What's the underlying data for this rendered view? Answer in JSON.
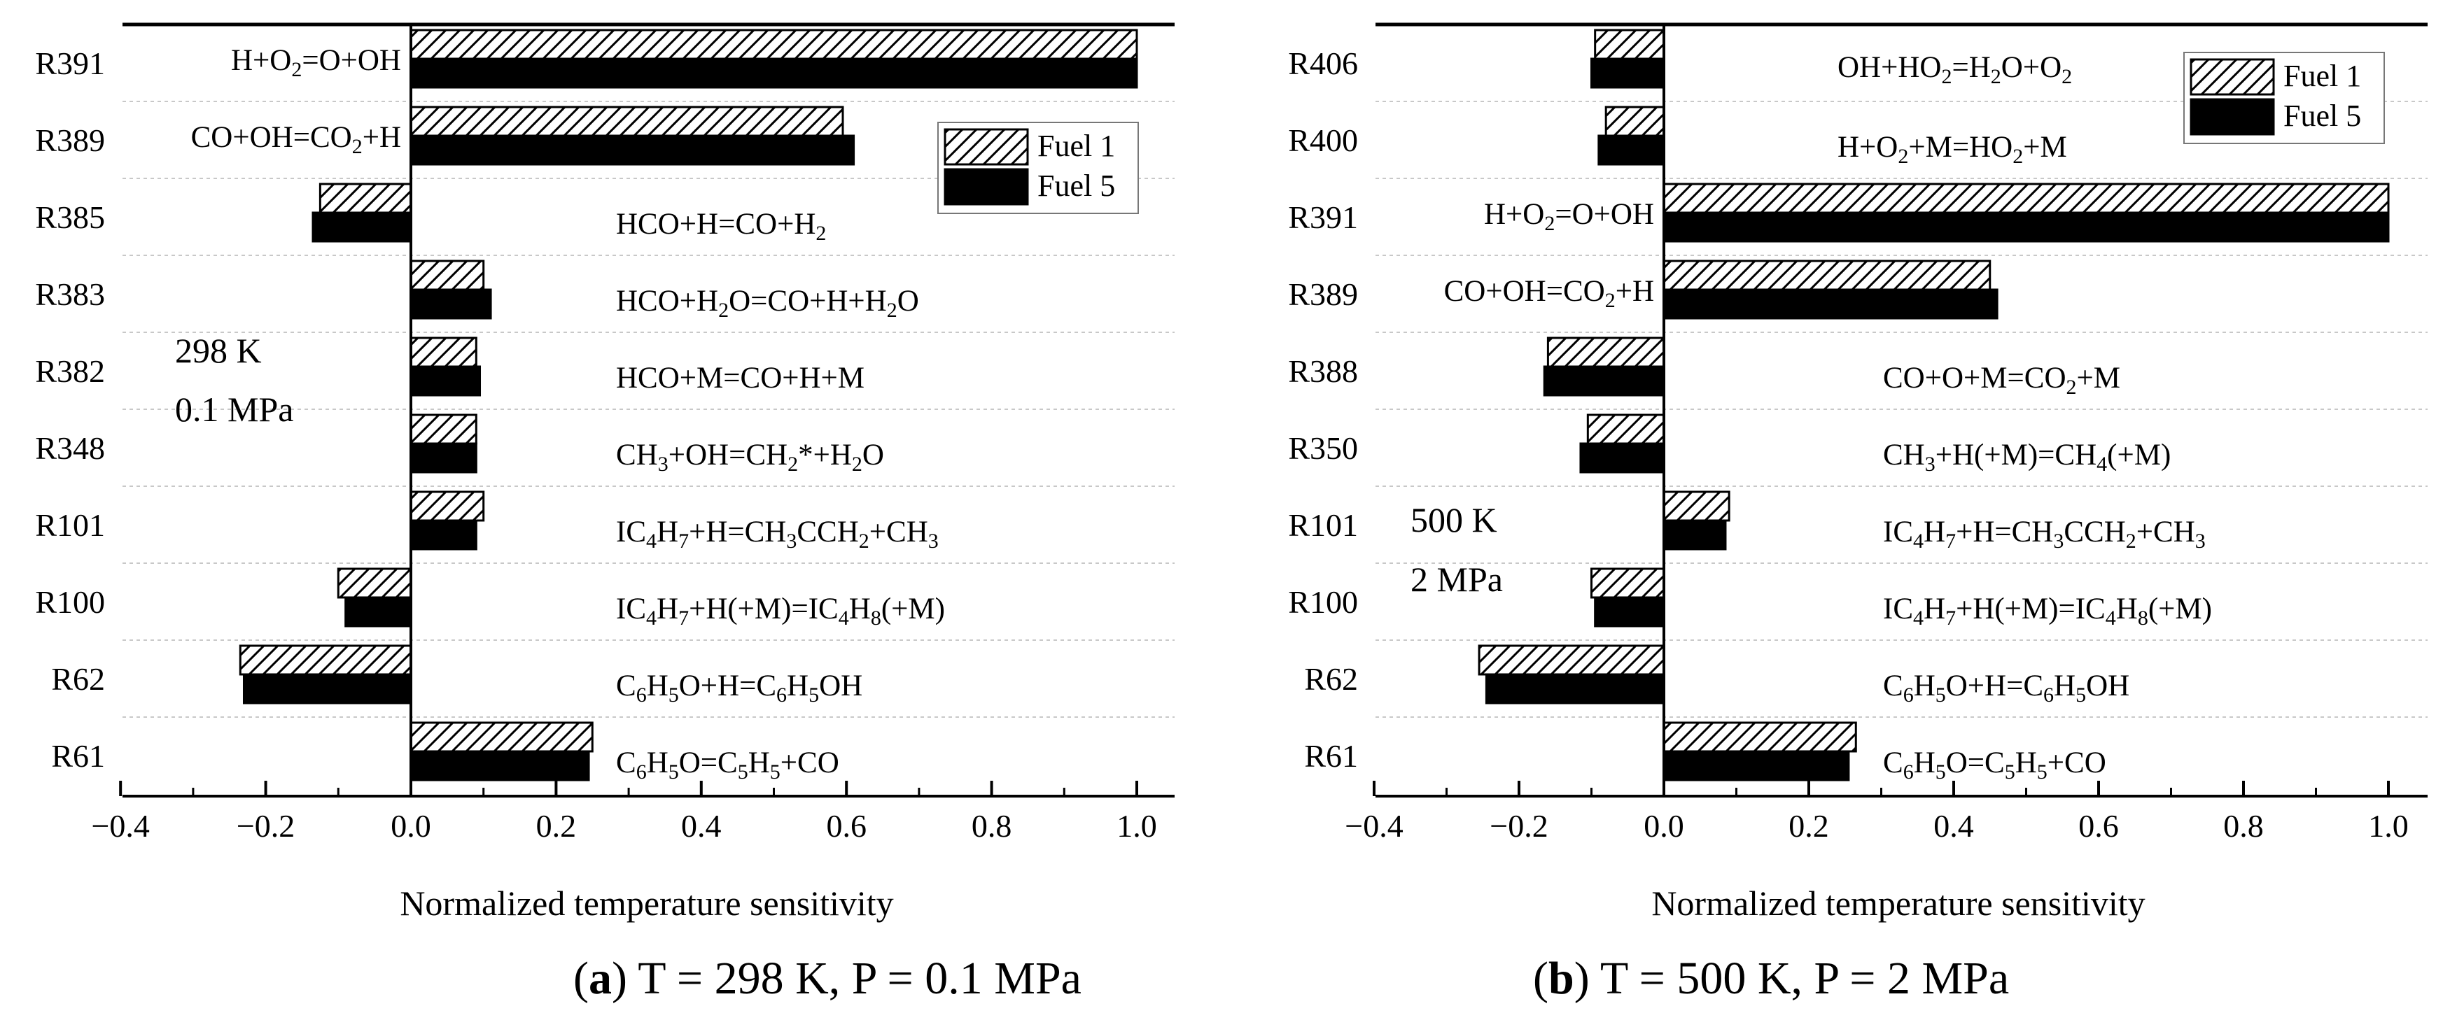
{
  "colors": {
    "fuel1_fill": "#ffffff",
    "fuel5_fill": "#000000",
    "axis": "#000000",
    "grid": "#c8c8c8"
  },
  "chart_data": [
    {
      "type": "bar",
      "orientation": "horizontal",
      "xlabel": "Normalized temperature sensitivity",
      "xlim": [
        -0.4,
        1.05
      ],
      "xticks": [
        "-0.4",
        "-0.2",
        "0.0",
        "0.2",
        "0.4",
        "0.6",
        "0.8",
        "1.0"
      ],
      "condition_lines": [
        "298 K",
        "0.1 MPa"
      ],
      "caption": {
        "label": "a",
        "text": " T = 298 K, P = 0.1 MPa"
      },
      "legend": [
        "Fuel 1",
        "Fuel 5"
      ],
      "legend_position": "top-right",
      "reaction_label_placement": [
        "left-of-zero",
        "left-of-zero",
        "right",
        "right",
        "right",
        "right",
        "right",
        "right",
        "right",
        "right"
      ],
      "categories": [
        {
          "id": "R391",
          "reaction": [
            [
              "H+O"
            ],
            [
              "2",
              "sub"
            ],
            [
              "=O+OH"
            ]
          ]
        },
        {
          "id": "R389",
          "reaction": [
            [
              "CO+OH=CO"
            ],
            [
              "2",
              "sub"
            ],
            [
              "+H"
            ]
          ]
        },
        {
          "id": "R385",
          "reaction": [
            [
              "HCO+H=CO+H"
            ],
            [
              "2",
              "sub"
            ]
          ]
        },
        {
          "id": "R383",
          "reaction": [
            [
              "HCO+H"
            ],
            [
              "2",
              "sub"
            ],
            [
              "O=CO+H+H"
            ],
            [
              "2",
              "sub"
            ],
            [
              "O"
            ]
          ]
        },
        {
          "id": "R382",
          "reaction": [
            [
              "HCO+M=CO+H+M"
            ]
          ]
        },
        {
          "id": "R348",
          "reaction": [
            [
              "CH"
            ],
            [
              "3",
              "sub"
            ],
            [
              "+OH=CH"
            ],
            [
              "2",
              "sub"
            ],
            [
              "*+H"
            ],
            [
              "2",
              "sub"
            ],
            [
              "O"
            ]
          ]
        },
        {
          "id": "R101",
          "reaction": [
            [
              "IC"
            ],
            [
              "4",
              "sub"
            ],
            [
              "H"
            ],
            [
              "7",
              "sub"
            ],
            [
              "+H=CH"
            ],
            [
              "3",
              "sub"
            ],
            [
              "CCH"
            ],
            [
              "2",
              "sub"
            ],
            [
              "+CH"
            ],
            [
              "3",
              "sub"
            ]
          ]
        },
        {
          "id": "R100",
          "reaction": [
            [
              "IC"
            ],
            [
              "4",
              "sub"
            ],
            [
              "H"
            ],
            [
              "7",
              "sub"
            ],
            [
              "+H(+M)=IC"
            ],
            [
              "4",
              "sub"
            ],
            [
              "H"
            ],
            [
              "8",
              "sub"
            ],
            [
              "(+M)"
            ]
          ]
        },
        {
          "id": "R62",
          "reaction": [
            [
              "C"
            ],
            [
              "6",
              "sub"
            ],
            [
              "H"
            ],
            [
              "5",
              "sub"
            ],
            [
              "O+H=C"
            ],
            [
              "6",
              "sub"
            ],
            [
              "H"
            ],
            [
              "5",
              "sub"
            ],
            [
              "OH"
            ]
          ]
        },
        {
          "id": "R61",
          "reaction": [
            [
              "C"
            ],
            [
              "6",
              "sub"
            ],
            [
              "H"
            ],
            [
              "5",
              "sub"
            ],
            [
              "O=C"
            ],
            [
              "5",
              "sub"
            ],
            [
              "H"
            ],
            [
              "5",
              "sub"
            ],
            [
              "+CO"
            ]
          ]
        }
      ],
      "series": [
        {
          "name": "Fuel 1",
          "values": [
            1.0,
            0.595,
            -0.125,
            0.1,
            0.09,
            0.09,
            0.1,
            -0.1,
            -0.235,
            0.25
          ]
        },
        {
          "name": "Fuel 5",
          "values": [
            1.0,
            0.61,
            -0.135,
            0.11,
            0.095,
            0.09,
            0.09,
            -0.09,
            -0.23,
            0.245
          ]
        }
      ]
    },
    {
      "type": "bar",
      "orientation": "horizontal",
      "xlabel": "Normalized temperature sensitivity",
      "xlim": [
        -0.4,
        1.05
      ],
      "xticks": [
        "-0.4",
        "-0.2",
        "0.0",
        "0.2",
        "0.4",
        "0.6",
        "0.8",
        "1.0"
      ],
      "condition_lines": [
        "500 K",
        "2 MPa"
      ],
      "caption": {
        "label": "b",
        "text": " T = 500 K, P = 2 MPa"
      },
      "legend": [
        "Fuel 1",
        "Fuel 5"
      ],
      "legend_position": "top-right",
      "reaction_label_placement": [
        "right",
        "right",
        "left-of-zero",
        "left-of-zero",
        "right",
        "right",
        "right",
        "right",
        "right",
        "right"
      ],
      "categories": [
        {
          "id": "R406",
          "reaction": [
            [
              "OH+HO"
            ],
            [
              "2",
              "sub"
            ],
            [
              "=H"
            ],
            [
              "2",
              "sub"
            ],
            [
              "O+O"
            ],
            [
              "2",
              "sub"
            ]
          ]
        },
        {
          "id": "R400",
          "reaction": [
            [
              "H+O"
            ],
            [
              "2",
              "sub"
            ],
            [
              "+M=HO"
            ],
            [
              "2",
              "sub"
            ],
            [
              "+M"
            ]
          ]
        },
        {
          "id": "R391",
          "reaction": [
            [
              "H+O"
            ],
            [
              "2",
              "sub"
            ],
            [
              "=O+OH"
            ]
          ]
        },
        {
          "id": "R389",
          "reaction": [
            [
              "CO+OH=CO"
            ],
            [
              "2",
              "sub"
            ],
            [
              "+H"
            ]
          ]
        },
        {
          "id": "R388",
          "reaction": [
            [
              "CO+O+M=CO"
            ],
            [
              "2",
              "sub"
            ],
            [
              "+M"
            ]
          ]
        },
        {
          "id": "R350",
          "reaction": [
            [
              "CH"
            ],
            [
              "3",
              "sub"
            ],
            [
              "+H(+M)=CH"
            ],
            [
              "4",
              "sub"
            ],
            [
              "(+M)"
            ]
          ]
        },
        {
          "id": "R101",
          "reaction": [
            [
              "IC"
            ],
            [
              "4",
              "sub"
            ],
            [
              "H"
            ],
            [
              "7",
              "sub"
            ],
            [
              "+H=CH"
            ],
            [
              "3",
              "sub"
            ],
            [
              "CCH"
            ],
            [
              "2",
              "sub"
            ],
            [
              "+CH"
            ],
            [
              "3",
              "sub"
            ]
          ]
        },
        {
          "id": "R100",
          "reaction": [
            [
              "IC"
            ],
            [
              "4",
              "sub"
            ],
            [
              "H"
            ],
            [
              "7",
              "sub"
            ],
            [
              "+H(+M)=IC"
            ],
            [
              "4",
              "sub"
            ],
            [
              "H"
            ],
            [
              "8",
              "sub"
            ],
            [
              "(+M)"
            ]
          ]
        },
        {
          "id": "R62",
          "reaction": [
            [
              "C"
            ],
            [
              "6",
              "sub"
            ],
            [
              "H"
            ],
            [
              "5",
              "sub"
            ],
            [
              "O+H=C"
            ],
            [
              "6",
              "sub"
            ],
            [
              "H"
            ],
            [
              "5",
              "sub"
            ],
            [
              "OH"
            ]
          ]
        },
        {
          "id": "R61",
          "reaction": [
            [
              "C"
            ],
            [
              "6",
              "sub"
            ],
            [
              "H"
            ],
            [
              "5",
              "sub"
            ],
            [
              "O=C"
            ],
            [
              "5",
              "sub"
            ],
            [
              "H"
            ],
            [
              "5",
              "sub"
            ],
            [
              "+CO"
            ]
          ]
        }
      ],
      "series": [
        {
          "name": "Fuel 1",
          "values": [
            -0.095,
            -0.08,
            1.0,
            0.45,
            -0.16,
            -0.105,
            0.09,
            -0.1,
            -0.255,
            0.265
          ]
        },
        {
          "name": "Fuel 5",
          "values": [
            -0.1,
            -0.09,
            1.0,
            0.46,
            -0.165,
            -0.115,
            0.085,
            -0.095,
            -0.245,
            0.255
          ]
        }
      ]
    }
  ]
}
